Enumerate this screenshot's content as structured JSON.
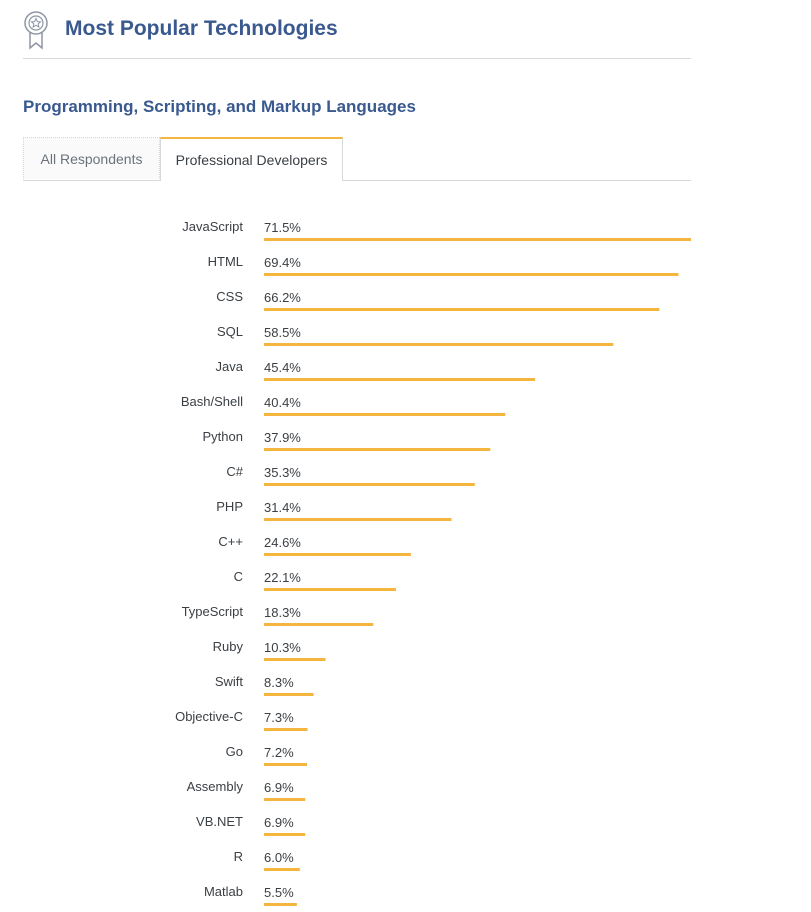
{
  "header": {
    "title": "Most Popular Technologies",
    "icon": "award-ribbon-icon"
  },
  "section": {
    "title": "Programming, Scripting, and Markup Languages"
  },
  "tabs": [
    {
      "label": "All Respondents",
      "active": false
    },
    {
      "label": "Professional Developers",
      "active": true
    }
  ],
  "colors": {
    "bar": "#f4b63f",
    "title": "#39598f",
    "text": "#3b4045"
  },
  "chart_data": {
    "type": "bar",
    "orientation": "horizontal",
    "categories": [
      "JavaScript",
      "HTML",
      "CSS",
      "SQL",
      "Java",
      "Bash/Shell",
      "Python",
      "C#",
      "PHP",
      "C++",
      "C",
      "TypeScript",
      "Ruby",
      "Swift",
      "Objective-C",
      "Go",
      "Assembly",
      "VB.NET",
      "R",
      "Matlab"
    ],
    "values": [
      71.5,
      69.4,
      66.2,
      58.5,
      45.4,
      40.4,
      37.9,
      35.3,
      31.4,
      24.6,
      22.1,
      18.3,
      10.3,
      8.3,
      7.3,
      7.2,
      6.9,
      6.9,
      6.0,
      5.5
    ],
    "value_labels": [
      "71.5%",
      "69.4%",
      "66.2%",
      "58.5%",
      "45.4%",
      "40.4%",
      "37.9%",
      "35.3%",
      "31.4%",
      "24.6%",
      "22.1%",
      "18.3%",
      "10.3%",
      "8.3%",
      "7.3%",
      "7.2%",
      "6.9%",
      "6.9%",
      "6.0%",
      "5.5%"
    ],
    "xlim": [
      0,
      71.5
    ],
    "grid": false,
    "legend": "none"
  }
}
